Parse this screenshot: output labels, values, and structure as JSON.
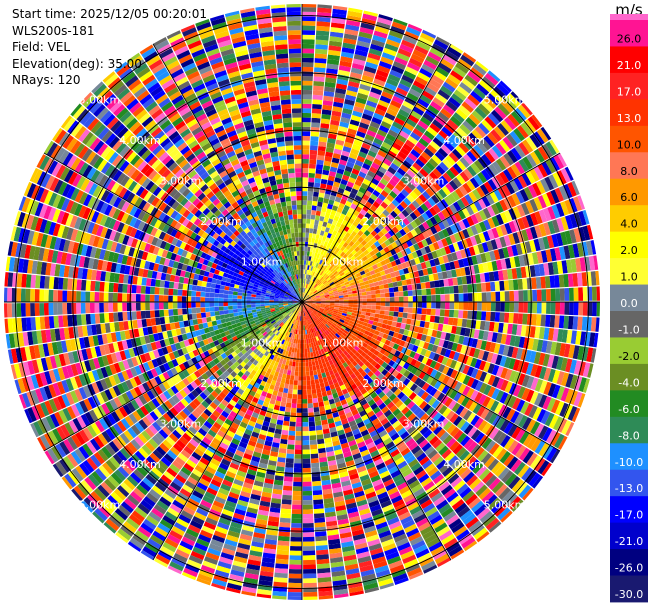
{
  "info": {
    "start_time": "Start time: 2025/12/05 00:20:01",
    "instrument": "WLS200s-181",
    "field": "Field: VEL",
    "elevation": "Elevation(deg): 35.00",
    "nrays": "NRays: 120"
  },
  "colorbar": {
    "unit": "m/s",
    "levels": [
      "26.0",
      "21.0",
      "17.0",
      "13.0",
      "10.0",
      "8.0",
      "6.0",
      "4.0",
      "2.0",
      "1.0",
      "0.0",
      "-1.0",
      "-2.0",
      "-4.0",
      "-6.0",
      "-8.0",
      "-10.0",
      "-13.0",
      "-17.0",
      "-21.0",
      "-26.0",
      "-30.0"
    ],
    "colors": [
      "#ff1493",
      "#ff0000",
      "#ff2222",
      "#ff3300",
      "#ff5500",
      "#ff7755",
      "#ff9900",
      "#ffcc00",
      "#ffff00",
      "#ffff33",
      "#778899",
      "#666666",
      "#99cc33",
      "#6b8e23",
      "#228b22",
      "#2e8b57",
      "#1e90ff",
      "#3355ee",
      "#0000ff",
      "#0000cc",
      "#000080",
      "#191970"
    ],
    "top_color": "#ff66cc"
  },
  "chart_data": {
    "type": "heatmap",
    "title": "",
    "field": "VEL",
    "unit": "m/s",
    "elevation_deg": 35.0,
    "n_rays": 120,
    "range_rings_km": [
      1.0,
      2.0,
      3.0,
      4.0,
      5.0
    ],
    "range_labels": [
      "1.00km",
      "2.00km",
      "3.00km",
      "4.00km",
      "5.00km"
    ],
    "max_range_km": 5.2,
    "valid_data_range_km": 1.6,
    "azimuth_spokes_deg": [
      0,
      30,
      60,
      90,
      120,
      150,
      180,
      210,
      240,
      270,
      300,
      330
    ],
    "velocity_pattern": [
      {
        "azimuth_deg": 0,
        "velocity": -1.0
      },
      {
        "azimuth_deg": 30,
        "velocity": 4.0
      },
      {
        "azimuth_deg": 60,
        "velocity": 6.0
      },
      {
        "azimuth_deg": 90,
        "velocity": 10.0
      },
      {
        "azimuth_deg": 120,
        "velocity": 13.0
      },
      {
        "azimuth_deg": 150,
        "velocity": 17.0
      },
      {
        "azimuth_deg": 180,
        "velocity": 13.0
      },
      {
        "azimuth_deg": 210,
        "velocity": 4.0
      },
      {
        "azimuth_deg": 240,
        "velocity": -4.0
      },
      {
        "azimuth_deg": 270,
        "velocity": -10.0
      },
      {
        "azimuth_deg": 300,
        "velocity": -17.0
      },
      {
        "azimuth_deg": 330,
        "velocity": -8.0
      }
    ],
    "vmin": -30.0,
    "vmax": 30.0
  }
}
